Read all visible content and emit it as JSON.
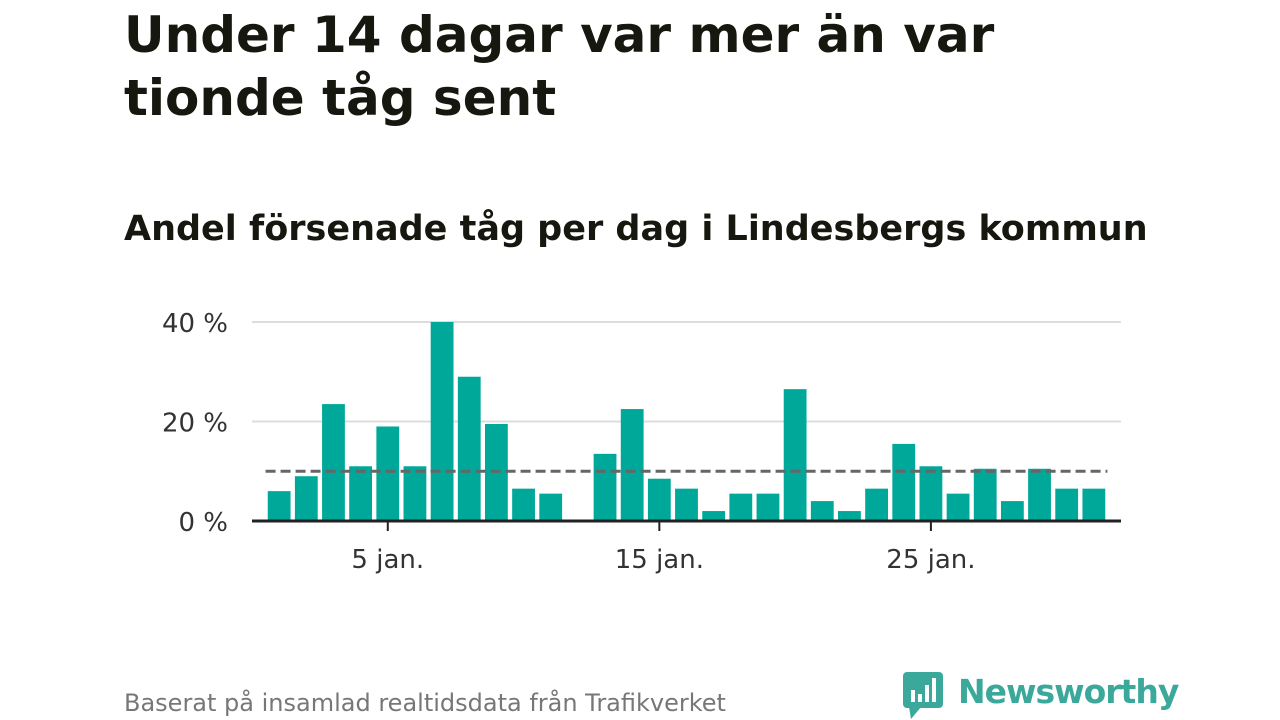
{
  "title": "Under 14 dagar var mer än var tionde tåg sent",
  "subtitle": "Andel försenade tåg per dag i Lindesbergs kommun",
  "footer": {
    "source": "Baserat på insamlad realtidsdata från Trafikverket"
  },
  "brand": {
    "name": "Newsworthy",
    "icon": "newsworthy-logo-icon",
    "color": "#3aa89b"
  },
  "colors": {
    "bar": "#00a89a",
    "reference_line": "#666666",
    "grid": "#dddddd",
    "axis": "#222222"
  },
  "chart_data": {
    "type": "bar",
    "title": "Andel försenade tåg per dag i Lindesbergs kommun",
    "xlabel": "",
    "ylabel": "",
    "x": [
      1,
      2,
      3,
      4,
      5,
      6,
      7,
      8,
      9,
      10,
      11,
      12,
      13,
      14,
      15,
      16,
      17,
      18,
      19,
      20,
      21,
      22,
      23,
      24,
      25,
      26,
      27,
      28,
      29,
      30,
      31
    ],
    "values": [
      6,
      9,
      23.5,
      11,
      19,
      11,
      40,
      29,
      19.5,
      6.5,
      5.5,
      null,
      13.5,
      22.5,
      8.5,
      6.5,
      2,
      5.5,
      5.5,
      26.5,
      4,
      2,
      6.5,
      15.5,
      11,
      5.5,
      10.5,
      4,
      10.5,
      6.5,
      6.5
    ],
    "reference_line": 10,
    "ylim": [
      0,
      40
    ],
    "y_ticks": [
      0,
      20,
      40
    ],
    "y_tick_labels": [
      "0 %",
      "20 %",
      "40 %"
    ],
    "x_ticks": [
      5,
      15,
      25
    ],
    "x_tick_labels": [
      "5 jan.",
      "15 jan.",
      "25 jan."
    ],
    "grid": true,
    "legend": "none"
  }
}
